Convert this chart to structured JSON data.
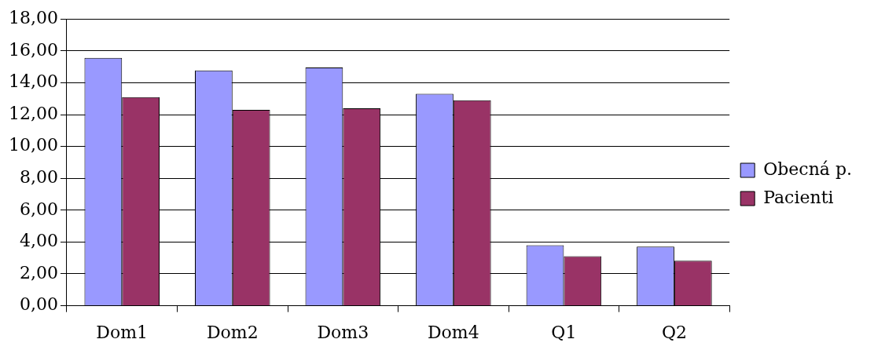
{
  "chart_data": {
    "type": "bar",
    "categories": [
      "Dom1",
      "Dom2",
      "Dom3",
      "Dom4",
      "Q1",
      "Q2"
    ],
    "series": [
      {
        "name": "Obecná p.",
        "color": "#9999ff",
        "values": [
          15.56,
          14.77,
          14.96,
          13.3,
          3.8,
          3.71
        ]
      },
      {
        "name": "Pacienti",
        "color": "#993366",
        "values": [
          13.09,
          12.3,
          12.4,
          12.9,
          3.11,
          2.83
        ]
      }
    ],
    "ylim": [
      0,
      18
    ],
    "yticks": [
      {
        "value": 0,
        "label": "0,00"
      },
      {
        "value": 2,
        "label": "2,00"
      },
      {
        "value": 4,
        "label": "4,00"
      },
      {
        "value": 6,
        "label": "6,00"
      },
      {
        "value": 8,
        "label": "8,00"
      },
      {
        "value": 10,
        "label": "10,00"
      },
      {
        "value": 12,
        "label": "12,00"
      },
      {
        "value": 14,
        "label": "14,00"
      },
      {
        "value": 16,
        "label": "16,00"
      },
      {
        "value": 18,
        "label": "18,00"
      }
    ],
    "grid": "y",
    "legend": "right"
  }
}
